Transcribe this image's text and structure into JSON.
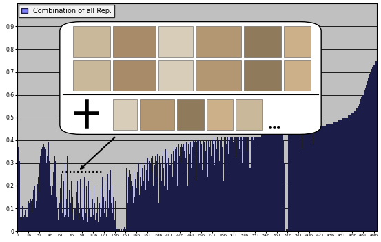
{
  "chart_data": {
    "type": "bar",
    "categories": [
      "1",
      null,
      null,
      null,
      null,
      null,
      null,
      null,
      null,
      null,
      null,
      null,
      null,
      null,
      null,
      "16",
      null,
      null,
      null,
      null,
      null,
      null,
      null,
      null,
      null,
      null,
      null,
      null,
      null,
      null,
      "31",
      null,
      null,
      null,
      null,
      null,
      null,
      null,
      null,
      null,
      null,
      null,
      null,
      null,
      null,
      "46",
      null,
      null,
      null,
      null,
      null,
      null,
      null,
      null,
      null,
      null,
      null,
      null,
      null,
      null,
      "61",
      null,
      null,
      null,
      null,
      null,
      null,
      null,
      null,
      null,
      null,
      null,
      null,
      null,
      null,
      "76",
      null,
      null,
      null,
      null,
      null,
      null,
      null,
      null,
      null,
      null,
      null,
      null,
      null,
      null,
      "91",
      null,
      null,
      null,
      null,
      null,
      null,
      null,
      null,
      null,
      null,
      null,
      null,
      null,
      null,
      "106",
      null,
      null,
      null,
      null,
      null,
      null,
      null,
      null,
      null,
      null,
      null,
      null,
      null,
      null,
      "121",
      null,
      null,
      null,
      null,
      null,
      null,
      null,
      null,
      null,
      null,
      null,
      null,
      null,
      null,
      "136",
      null,
      null,
      null,
      null,
      null,
      null,
      null,
      null,
      null,
      null,
      null,
      null,
      null,
      null,
      "151",
      null,
      null,
      null,
      null,
      null,
      null,
      null,
      null,
      null,
      null,
      null,
      null,
      null,
      null,
      "166",
      null,
      null,
      null,
      null,
      null,
      null,
      null,
      null,
      null,
      null,
      null,
      null,
      null,
      null,
      "181",
      null,
      null,
      null,
      null,
      null,
      null,
      null,
      null,
      null,
      null,
      null,
      null,
      null,
      null,
      "196",
      null,
      null,
      null,
      null,
      null,
      null,
      null,
      null,
      null,
      null,
      null,
      null,
      null,
      null,
      "211",
      null,
      null,
      null,
      null,
      null,
      null,
      null,
      null,
      null,
      null,
      null,
      null,
      null,
      null,
      "226",
      null,
      null,
      null,
      null,
      null,
      null,
      null,
      null,
      null,
      null,
      null,
      null,
      null,
      null,
      "241",
      null,
      null,
      null,
      null,
      null,
      null,
      null,
      null,
      null,
      null,
      null,
      null,
      null,
      null,
      "256",
      null,
      null,
      null,
      null,
      null,
      null,
      null,
      null,
      null,
      null,
      null,
      null,
      null,
      null,
      "271",
      null,
      null,
      null,
      null,
      null,
      null,
      null,
      null,
      null,
      null,
      null,
      null,
      null,
      null,
      "286",
      null,
      null,
      null,
      null,
      null,
      null,
      null,
      null,
      null,
      null,
      null,
      null,
      null,
      null,
      "301",
      null,
      null,
      null,
      null,
      null,
      null,
      null,
      null,
      null,
      null,
      null,
      null,
      null,
      null,
      "316",
      null,
      null,
      null,
      null,
      null,
      null,
      null,
      null,
      null,
      null,
      null,
      null,
      null,
      null,
      "331",
      null,
      null,
      null,
      null,
      null,
      null,
      null,
      null,
      null,
      null,
      null,
      null,
      null,
      null,
      "346",
      null,
      null,
      null,
      null,
      null,
      null,
      null,
      null,
      null,
      null,
      null,
      null,
      null,
      null,
      "361",
      null,
      null,
      null,
      null,
      null,
      null,
      null,
      null,
      null,
      null,
      null,
      null,
      null,
      null,
      "376",
      null,
      null,
      null,
      null,
      null,
      null,
      null,
      null,
      null,
      null,
      null,
      null,
      null,
      null,
      "391",
      null,
      null,
      null,
      null,
      null,
      null,
      null,
      null,
      null,
      null,
      null,
      null,
      null,
      null,
      "406",
      null,
      null,
      null,
      null,
      null,
      null,
      null,
      null,
      null,
      null,
      null,
      null,
      null,
      null,
      "421",
      null,
      null,
      null,
      null,
      null,
      null,
      null,
      null,
      null,
      null,
      null,
      null,
      null,
      null,
      "436",
      null,
      null,
      null,
      null,
      null,
      null,
      null,
      null,
      null,
      null,
      null,
      null,
      null,
      null,
      "451",
      null,
      null,
      null,
      null,
      null,
      null,
      null,
      null,
      null,
      null,
      null,
      null,
      null,
      null,
      "466",
      null,
      null,
      null,
      null,
      null,
      null,
      null,
      null,
      null,
      null,
      null,
      null,
      null,
      null,
      "481",
      null,
      null,
      null,
      null,
      null,
      null,
      null,
      null,
      null,
      null,
      null,
      null,
      null,
      null,
      "496",
      null,
      null,
      null,
      null
    ],
    "series": [
      {
        "name": "Combination of all Rep.",
        "color": "#1c1c48",
        "values": [
          0.33,
          0.37,
          0.36,
          0.31,
          0.06,
          0.05,
          0.06,
          0.11,
          0.05,
          0.06,
          0.07,
          0.1,
          0.09,
          0.06,
          0.12,
          0.13,
          0.12,
          0.1,
          0.14,
          0.13,
          0.08,
          0.14,
          0.18,
          0.16,
          0.2,
          0.1,
          0.13,
          0.18,
          0.21,
          0.24,
          0.17,
          0.3,
          0.33,
          0.35,
          0.36,
          0.37,
          0.38,
          0.37,
          0.39,
          0.36,
          0.3,
          0.33,
          0.35,
          0.39,
          0.31,
          0.27,
          0.2,
          0.16,
          0.12,
          0.2,
          0.26,
          0.3,
          0.33,
          0.31,
          0.23,
          0.15,
          0.1,
          0.05,
          0.12,
          0.19,
          0.14,
          0.25,
          0.08,
          0.05,
          0.22,
          0.06,
          0.3,
          0.07,
          0.14,
          0.33,
          0.1,
          0.06,
          0.18,
          0.05,
          0.12,
          0.22,
          0.08,
          0.15,
          0.05,
          0.2,
          0.1,
          0.07,
          0.17,
          0.22,
          0.12,
          0.05,
          0.08,
          0.23,
          0.14,
          0.1,
          0.06,
          0.19,
          0.05,
          0.24,
          0.12,
          0.08,
          0.2,
          0.06,
          0.04,
          0.22,
          0.1,
          0.18,
          0.06,
          0.26,
          0.14,
          0.07,
          0.2,
          0.12,
          0.05,
          0.21,
          0.08,
          0.15,
          0.04,
          0.26,
          0.12,
          0.06,
          0.19,
          0.1,
          0.24,
          0.05,
          0.15,
          0.08,
          0.22,
          0.13,
          0.06,
          0.25,
          0.1,
          0.18,
          0.05,
          0.27,
          0.12,
          0.2,
          0.08,
          0.15,
          0.26,
          0.05,
          0.13,
          0.02,
          0.01,
          0.01,
          0.01,
          0.0,
          0.01,
          0.0,
          0.01,
          0.01,
          0.0,
          0.01,
          0.02,
          0.01,
          0.01,
          0.28,
          0.26,
          0.12,
          0.24,
          0.27,
          0.18,
          0.25,
          0.22,
          0.28,
          0.2,
          0.12,
          0.26,
          0.15,
          0.23,
          0.27,
          0.19,
          0.26,
          0.3,
          0.16,
          0.24,
          0.3,
          0.2,
          0.28,
          0.31,
          0.22,
          0.29,
          0.31,
          0.18,
          0.27,
          0.3,
          0.32,
          0.22,
          0.31,
          0.15,
          0.3,
          0.32,
          0.26,
          0.33,
          0.2,
          0.29,
          0.33,
          0.24,
          0.31,
          0.34,
          0.27,
          0.12,
          0.33,
          0.3,
          0.34,
          0.22,
          0.33,
          0.35,
          0.28,
          0.2,
          0.34,
          0.36,
          0.3,
          0.35,
          0.18,
          0.32,
          0.36,
          0.29,
          0.34,
          0.36,
          0.24,
          0.35,
          0.37,
          0.31,
          0.36,
          0.28,
          0.37,
          0.2,
          0.36,
          0.38,
          0.33,
          0.37,
          0.3,
          0.38,
          0.37,
          0.25,
          0.38,
          0.35,
          0.38,
          0.32,
          0.39,
          0.2,
          0.38,
          0.39,
          0.34,
          0.39,
          0.28,
          0.39,
          0.37,
          0.4,
          0.33,
          0.39,
          0.4,
          0.22,
          0.39,
          0.4,
          0.36,
          0.4,
          0.3,
          0.39,
          0.4,
          0.38,
          0.27,
          0.4,
          0.39,
          0.4,
          0.35,
          0.4,
          0.39,
          0.24,
          0.4,
          0.41,
          0.37,
          0.4,
          0.33,
          0.41,
          0.4,
          0.38,
          0.41,
          0.29,
          0.4,
          0.41,
          0.36,
          0.41,
          0.4,
          0.31,
          0.41,
          0.4,
          0.41,
          0.37,
          0.41,
          0.22,
          0.41,
          0.4,
          0.41,
          0.38,
          0.41,
          0.41,
          0.34,
          0.41,
          0.4,
          0.41,
          0.26,
          0.41,
          0.41,
          0.39,
          0.41,
          0.41,
          0.32,
          0.41,
          0.41,
          0.4,
          0.41,
          0.36,
          0.41,
          0.41,
          0.41,
          0.3,
          0.41,
          0.41,
          0.41,
          0.39,
          0.41,
          0.41,
          0.35,
          0.41,
          0.41,
          0.41,
          0.28,
          0.41,
          0.41,
          0.41,
          0.4,
          0.41,
          0.41,
          0.41,
          0.38,
          0.41,
          0.41,
          0.41,
          0.41,
          0.41,
          0.42,
          0.41,
          0.42,
          0.42,
          0.42,
          0.42,
          0.42,
          0.42,
          0.42,
          0.42,
          0.42,
          0.42,
          0.42,
          0.42,
          0.42,
          0.42,
          0.42,
          0.42,
          0.42,
          0.42,
          0.42,
          0.42,
          0.42,
          0.42,
          0.42,
          0.42,
          0.42,
          0.42,
          0.42,
          0.42,
          0.42,
          0.43,
          0.4,
          0.3,
          0.01,
          0.0,
          0.01,
          0.0,
          0.01,
          0.43,
          0.43,
          0.43,
          0.43,
          0.43,
          0.43,
          0.43,
          0.43,
          0.43,
          0.43,
          0.43,
          0.43,
          0.43,
          0.43,
          0.44,
          0.44,
          0.44,
          0.44,
          0.44,
          0.36,
          0.44,
          0.44,
          0.44,
          0.44,
          0.44,
          0.44,
          0.44,
          0.44,
          0.44,
          0.45,
          0.45,
          0.45,
          0.45,
          0.45,
          0.45,
          0.38,
          0.45,
          0.45,
          0.45,
          0.45,
          0.45,
          0.45,
          0.45,
          0.46,
          0.46,
          0.46,
          0.46,
          0.46,
          0.46,
          0.46,
          0.46,
          0.46,
          0.46,
          0.47,
          0.47,
          0.47,
          0.47,
          0.47,
          0.47,
          0.47,
          0.47,
          0.47,
          0.48,
          0.48,
          0.48,
          0.48,
          0.48,
          0.48,
          0.48,
          0.48,
          0.49,
          0.49,
          0.49,
          0.49,
          0.49,
          0.49,
          0.5,
          0.5,
          0.5,
          0.5,
          0.5,
          0.5,
          0.5,
          0.51,
          0.51,
          0.51,
          0.51,
          0.51,
          0.52,
          0.52,
          0.52,
          0.52,
          0.53,
          0.53,
          0.53,
          0.54,
          0.54,
          0.55,
          0.55,
          0.56,
          0.57,
          0.58,
          0.59,
          0.6,
          0.6,
          0.61,
          0.62,
          0.63,
          0.64,
          0.65,
          0.66,
          0.67,
          0.68,
          0.69,
          0.7,
          0.7,
          0.71,
          0.72,
          0.72,
          0.73,
          0.73,
          0.74,
          0.75,
          0.75
        ]
      }
    ],
    "ylim": [
      0,
      1
    ],
    "yticks": [
      0,
      0.1,
      0.2,
      0.3,
      0.4,
      0.5,
      0.6,
      0.7,
      0.8,
      0.9
    ],
    "grid": true,
    "legend": "upper left"
  }
}
